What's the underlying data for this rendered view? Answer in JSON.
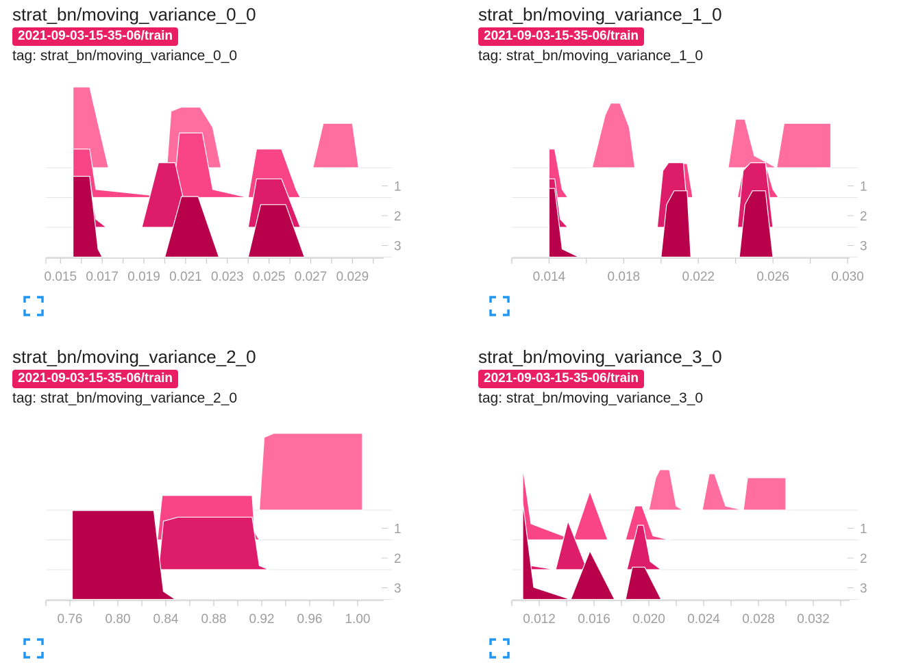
{
  "run_label": "2021-09-03-15-35-06/train",
  "tag_prefix": "tag: ",
  "expand_icon": "fullscreen-icon",
  "colors": {
    "badge": "#e91e63",
    "step1": "#ff6e9f",
    "step2": "#f94585",
    "step3": "#dd1c6a",
    "step4": "#b9004a",
    "axis": "#c8c8c8",
    "tick_text": "#9e9e9e",
    "expand": "#2196f3"
  },
  "chart_data": [
    {
      "type": "histogram-ridgeline",
      "title": "strat_bn/moving_variance_0_0",
      "tag": "strat_bn/moving_variance_0_0",
      "xlim": [
        0.0143,
        0.0304
      ],
      "xticks": [
        "0.015",
        "0.017",
        "0.019",
        "0.021",
        "0.023",
        "0.025",
        "0.027",
        "0.029"
      ],
      "yticks": [
        "1",
        "2",
        "3"
      ],
      "series": [
        {
          "step": 0,
          "points": [
            [
              0.0156,
              0
            ],
            [
              0.0156,
              1.0
            ],
            [
              0.0164,
              1.0
            ],
            [
              0.0168,
              0.55
            ],
            [
              0.0173,
              0
            ],
            [
              0.0201,
              0
            ],
            [
              0.0203,
              0.7
            ],
            [
              0.0208,
              0.75
            ],
            [
              0.0217,
              0.75
            ],
            [
              0.0223,
              0.5
            ],
            [
              0.0227,
              0
            ],
            [
              0.0271,
              0
            ],
            [
              0.0276,
              0.55
            ],
            [
              0.029,
              0.55
            ],
            [
              0.0293,
              0
            ]
          ]
        },
        {
          "step": 1,
          "points": [
            [
              0.0156,
              0
            ],
            [
              0.0156,
              0.6
            ],
            [
              0.0164,
              0.6
            ],
            [
              0.0167,
              0.1
            ],
            [
              0.0204,
              0
            ],
            [
              0.0207,
              0.8
            ],
            [
              0.0218,
              0.8
            ],
            [
              0.0223,
              0.1
            ],
            [
              0.024,
              0
            ],
            [
              0.0244,
              0.6
            ],
            [
              0.0256,
              0.6
            ],
            [
              0.0263,
              0.1
            ],
            [
              0.0265,
              0
            ]
          ]
        },
        {
          "step": 2,
          "points": [
            [
              0.0156,
              0
            ],
            [
              0.0156,
              0.6
            ],
            [
              0.0164,
              0.6
            ],
            [
              0.0167,
              0.1
            ],
            [
              0.0172,
              0
            ],
            [
              0.0189,
              0
            ],
            [
              0.0197,
              0.8
            ],
            [
              0.0205,
              0.8
            ],
            [
              0.0212,
              0
            ],
            [
              0.024,
              0
            ],
            [
              0.0244,
              0.6
            ],
            [
              0.0256,
              0.6
            ],
            [
              0.0265,
              0
            ]
          ]
        },
        {
          "step": 3,
          "points": [
            [
              0.0156,
              0
            ],
            [
              0.0156,
              1.0
            ],
            [
              0.0164,
              1.0
            ],
            [
              0.0168,
              0.1
            ],
            [
              0.017,
              0
            ],
            [
              0.02,
              0
            ],
            [
              0.0208,
              0.75
            ],
            [
              0.0216,
              0.75
            ],
            [
              0.022,
              0.45
            ],
            [
              0.0226,
              0
            ],
            [
              0.024,
              0
            ],
            [
              0.0246,
              0.65
            ],
            [
              0.0258,
              0.65
            ],
            [
              0.0267,
              0
            ]
          ]
        }
      ]
    },
    {
      "type": "histogram-ridgeline",
      "title": "strat_bn/moving_variance_1_0",
      "tag": "strat_bn/moving_variance_1_0",
      "xlim": [
        0.012,
        0.03
      ],
      "xticks": [
        "0.014",
        "0.018",
        "0.022",
        "0.026",
        "0.030"
      ],
      "yticks": [
        "1",
        "2",
        "3"
      ],
      "series": [
        {
          "step": 0,
          "points": [
            [
              0.0163,
              0
            ],
            [
              0.017,
              0.65
            ],
            [
              0.0173,
              0.8
            ],
            [
              0.0178,
              0.8
            ],
            [
              0.0183,
              0.5
            ],
            [
              0.0186,
              0
            ],
            [
              0.0197,
              0
            ],
            [
              0.0236,
              0
            ],
            [
              0.024,
              0.6
            ],
            [
              0.0245,
              0.6
            ],
            [
              0.025,
              0.15
            ],
            [
              0.0262,
              0
            ],
            [
              0.0266,
              0.55
            ],
            [
              0.0291,
              0.55
            ],
            [
              0.0291,
              0
            ]
          ]
        },
        {
          "step": 1,
          "points": [
            [
              0.014,
              0
            ],
            [
              0.014,
              0.6
            ],
            [
              0.0143,
              0.6
            ],
            [
              0.0147,
              0.1
            ],
            [
              0.015,
              0
            ],
            [
              0.02,
              0
            ],
            [
              0.0203,
              0.35
            ],
            [
              0.0206,
              0.42
            ],
            [
              0.0214,
              0.42
            ],
            [
              0.0217,
              0
            ],
            [
              0.0233,
              0
            ],
            [
              0.0241,
              0
            ],
            [
              0.0244,
              0.35
            ],
            [
              0.0248,
              0.42
            ],
            [
              0.0256,
              0.42
            ],
            [
              0.026,
              0.1
            ],
            [
              0.0263,
              0
            ]
          ]
        },
        {
          "step": 2,
          "points": [
            [
              0.014,
              0
            ],
            [
              0.014,
              0.6
            ],
            [
              0.0143,
              0.6
            ],
            [
              0.0146,
              0.1
            ],
            [
              0.015,
              0
            ],
            [
              0.0198,
              0
            ],
            [
              0.0201,
              0.7
            ],
            [
              0.0204,
              0.8
            ],
            [
              0.0212,
              0.8
            ],
            [
              0.0215,
              0
            ],
            [
              0.0241,
              0
            ],
            [
              0.0244,
              0.7
            ],
            [
              0.0248,
              0.8
            ],
            [
              0.0256,
              0.8
            ],
            [
              0.026,
              0
            ]
          ]
        },
        {
          "step": 3,
          "points": [
            [
              0.014,
              0
            ],
            [
              0.014,
              0.85
            ],
            [
              0.0143,
              0.85
            ],
            [
              0.0147,
              0.1
            ],
            [
              0.0156,
              0
            ],
            [
              0.02,
              0
            ],
            [
              0.0203,
              0.65
            ],
            [
              0.0207,
              0.82
            ],
            [
              0.0214,
              0.82
            ],
            [
              0.0216,
              0
            ],
            [
              0.0242,
              0
            ],
            [
              0.0245,
              0.65
            ],
            [
              0.0249,
              0.82
            ],
            [
              0.0256,
              0.82
            ],
            [
              0.026,
              0
            ]
          ]
        }
      ]
    },
    {
      "type": "histogram-ridgeline",
      "title": "strat_bn/moving_variance_2_0",
      "tag": "strat_bn/moving_variance_2_0",
      "xlim": [
        0.74,
        1.02
      ],
      "xticks": [
        "0.76",
        "0.80",
        "0.84",
        "0.88",
        "0.92",
        "0.96",
        "1.00"
      ],
      "yticks": [
        "1",
        "2",
        "3"
      ],
      "series": [
        {
          "step": 0,
          "points": [
            [
              0.918,
              0
            ],
            [
              0.922,
              0.9
            ],
            [
              0.93,
              0.95
            ],
            [
              1.004,
              0.95
            ],
            [
              1.004,
              0
            ]
          ]
        },
        {
          "step": 1,
          "points": [
            [
              0.833,
              0
            ],
            [
              0.837,
              0.55
            ],
            [
              0.85,
              0.55
            ],
            [
              0.912,
              0.55
            ],
            [
              0.914,
              0.1
            ],
            [
              0.918,
              0
            ]
          ]
        },
        {
          "step": 2,
          "points": [
            [
              0.834,
              0
            ],
            [
              0.838,
              0.6
            ],
            [
              0.85,
              0.65
            ],
            [
              0.912,
              0.65
            ],
            [
              0.918,
              0.05
            ],
            [
              0.926,
              0
            ]
          ]
        },
        {
          "step": 3,
          "points": [
            [
              0.762,
              0
            ],
            [
              0.762,
              1.1
            ],
            [
              0.83,
              1.1
            ],
            [
              0.838,
              0.1
            ],
            [
              0.848,
              0
            ]
          ]
        }
      ]
    },
    {
      "type": "histogram-ridgeline",
      "title": "strat_bn/moving_variance_3_0",
      "tag": "strat_bn/moving_variance_3_0",
      "xlim": [
        0.01,
        0.0345
      ],
      "xticks": [
        "0.012",
        "0.016",
        "0.020",
        "0.024",
        "0.028",
        "0.032"
      ],
      "yticks": [
        "1",
        "2",
        "3"
      ],
      "series": [
        {
          "step": 0,
          "points": [
            [
              0.02,
              0
            ],
            [
              0.0205,
              0.4
            ],
            [
              0.0208,
              0.5
            ],
            [
              0.0215,
              0.5
            ],
            [
              0.022,
              0.05
            ],
            [
              0.0225,
              0
            ],
            [
              0.0239,
              0
            ],
            [
              0.0244,
              0.45
            ],
            [
              0.0248,
              0.45
            ],
            [
              0.0256,
              0.05
            ],
            [
              0.0269,
              0
            ],
            [
              0.0272,
              0.4
            ],
            [
              0.03,
              0.4
            ],
            [
              0.03,
              0
            ]
          ]
        },
        {
          "step": 1,
          "points": [
            [
              0.0108,
              0
            ],
            [
              0.0108,
              0.9
            ],
            [
              0.0114,
              0.2
            ],
            [
              0.0145,
              0
            ],
            [
              0.0157,
              0.6
            ],
            [
              0.017,
              0
            ],
            [
              0.0183,
              0
            ],
            [
              0.019,
              0.42
            ],
            [
              0.0195,
              0.42
            ],
            [
              0.0203,
              0.05
            ],
            [
              0.0215,
              0
            ]
          ]
        },
        {
          "step": 2,
          "points": [
            [
              0.0108,
              0
            ],
            [
              0.0108,
              0.8
            ],
            [
              0.0114,
              0.05
            ],
            [
              0.0132,
              0
            ],
            [
              0.0141,
              0.6
            ],
            [
              0.0155,
              0
            ],
            [
              0.0184,
              0
            ],
            [
              0.0192,
              0.55
            ],
            [
              0.0196,
              0.55
            ],
            [
              0.0201,
              0.1
            ],
            [
              0.0209,
              0
            ]
          ]
        },
        {
          "step": 3,
          "points": [
            [
              0.0108,
              0
            ],
            [
              0.0108,
              1.2
            ],
            [
              0.0116,
              0.15
            ],
            [
              0.0143,
              0
            ],
            [
              0.0157,
              0.6
            ],
            [
              0.0175,
              0
            ],
            [
              0.0183,
              0
            ],
            [
              0.0188,
              0.4
            ],
            [
              0.0197,
              0.4
            ],
            [
              0.0209,
              0
            ]
          ]
        }
      ]
    }
  ]
}
